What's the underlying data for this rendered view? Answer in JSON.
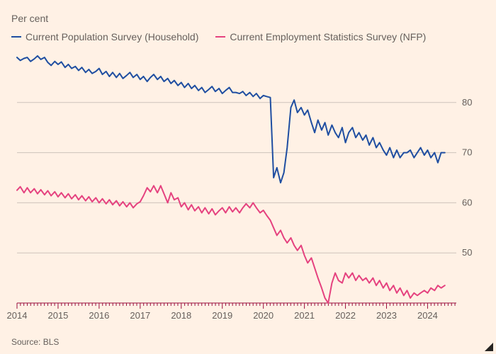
{
  "chart": {
    "type": "line",
    "ylabel": "Per cent",
    "source_label": "Source: BLS",
    "background_color": "#fff1e5",
    "ylim": [
      40,
      90
    ],
    "ytick_step": 10,
    "yticks": [
      50,
      60,
      70,
      80
    ],
    "grid_color": "#cdc3bb",
    "tick_color": "#990f3d",
    "tick_text_color": "#66605c",
    "tick_fontsize": 13,
    "legend_fontsize": 14,
    "line_width": 2,
    "xlim": [
      2014,
      2024.7
    ],
    "xticks": [
      2014,
      2015,
      2016,
      2017,
      2018,
      2019,
      2020,
      2021,
      2022,
      2023,
      2024
    ],
    "xtick_labels": [
      "2014",
      "2015",
      "2016",
      "2017",
      "2018",
      "2019",
      "2020",
      "2021",
      "2022",
      "2023",
      "2024"
    ],
    "minor_ticks_per_year": 12,
    "series": [
      {
        "id": "cps",
        "label": "Current Population Survey (Household)",
        "color": "#1f4ea1",
        "data": [
          [
            2014.0,
            89.0
          ],
          [
            2014.08,
            88.4
          ],
          [
            2014.17,
            88.8
          ],
          [
            2014.25,
            89.0
          ],
          [
            2014.33,
            88.2
          ],
          [
            2014.42,
            88.7
          ],
          [
            2014.5,
            89.3
          ],
          [
            2014.58,
            88.6
          ],
          [
            2014.67,
            89.0
          ],
          [
            2014.75,
            88.0
          ],
          [
            2014.83,
            87.4
          ],
          [
            2014.92,
            88.2
          ],
          [
            2015.0,
            87.6
          ],
          [
            2015.08,
            88.1
          ],
          [
            2015.17,
            87.0
          ],
          [
            2015.25,
            87.6
          ],
          [
            2015.33,
            86.8
          ],
          [
            2015.42,
            87.2
          ],
          [
            2015.5,
            86.4
          ],
          [
            2015.58,
            87.0
          ],
          [
            2015.67,
            86.0
          ],
          [
            2015.75,
            86.6
          ],
          [
            2015.83,
            85.8
          ],
          [
            2015.92,
            86.2
          ],
          [
            2016.0,
            86.8
          ],
          [
            2016.08,
            85.6
          ],
          [
            2016.17,
            86.2
          ],
          [
            2016.25,
            85.2
          ],
          [
            2016.33,
            86.0
          ],
          [
            2016.42,
            85.0
          ],
          [
            2016.5,
            85.8
          ],
          [
            2016.58,
            84.8
          ],
          [
            2016.67,
            85.4
          ],
          [
            2016.75,
            86.0
          ],
          [
            2016.83,
            85.0
          ],
          [
            2016.92,
            85.6
          ],
          [
            2017.0,
            84.6
          ],
          [
            2017.08,
            85.2
          ],
          [
            2017.17,
            84.2
          ],
          [
            2017.25,
            85.0
          ],
          [
            2017.33,
            85.6
          ],
          [
            2017.42,
            84.6
          ],
          [
            2017.5,
            85.2
          ],
          [
            2017.58,
            84.2
          ],
          [
            2017.67,
            84.8
          ],
          [
            2017.75,
            83.8
          ],
          [
            2017.83,
            84.4
          ],
          [
            2017.92,
            83.4
          ],
          [
            2018.0,
            84.0
          ],
          [
            2018.08,
            83.0
          ],
          [
            2018.17,
            83.8
          ],
          [
            2018.25,
            82.8
          ],
          [
            2018.33,
            83.4
          ],
          [
            2018.42,
            82.4
          ],
          [
            2018.5,
            83.0
          ],
          [
            2018.58,
            82.0
          ],
          [
            2018.67,
            82.6
          ],
          [
            2018.75,
            83.2
          ],
          [
            2018.83,
            82.2
          ],
          [
            2018.92,
            82.8
          ],
          [
            2019.0,
            81.8
          ],
          [
            2019.08,
            82.4
          ],
          [
            2019.17,
            83.0
          ],
          [
            2019.25,
            82.0
          ],
          [
            2019.33,
            82.0
          ],
          [
            2019.42,
            81.8
          ],
          [
            2019.5,
            82.2
          ],
          [
            2019.58,
            81.4
          ],
          [
            2019.67,
            82.0
          ],
          [
            2019.75,
            81.2
          ],
          [
            2019.83,
            81.8
          ],
          [
            2019.92,
            80.8
          ],
          [
            2020.0,
            81.4
          ],
          [
            2020.08,
            81.2
          ],
          [
            2020.17,
            81.0
          ],
          [
            2020.25,
            65.0
          ],
          [
            2020.33,
            67.0
          ],
          [
            2020.42,
            64.0
          ],
          [
            2020.5,
            66.0
          ],
          [
            2020.58,
            71.0
          ],
          [
            2020.67,
            79.0
          ],
          [
            2020.75,
            80.5
          ],
          [
            2020.83,
            78.0
          ],
          [
            2020.92,
            79.0
          ],
          [
            2021.0,
            77.5
          ],
          [
            2021.08,
            78.5
          ],
          [
            2021.17,
            76.0
          ],
          [
            2021.25,
            74.0
          ],
          [
            2021.33,
            76.5
          ],
          [
            2021.42,
            74.5
          ],
          [
            2021.5,
            76.0
          ],
          [
            2021.58,
            73.5
          ],
          [
            2021.67,
            75.5
          ],
          [
            2021.75,
            74.0
          ],
          [
            2021.83,
            73.0
          ],
          [
            2021.92,
            75.0
          ],
          [
            2022.0,
            72.0
          ],
          [
            2022.08,
            74.0
          ],
          [
            2022.17,
            75.0
          ],
          [
            2022.25,
            73.0
          ],
          [
            2022.33,
            74.0
          ],
          [
            2022.42,
            72.5
          ],
          [
            2022.5,
            73.5
          ],
          [
            2022.58,
            71.5
          ],
          [
            2022.67,
            73.0
          ],
          [
            2022.75,
            71.0
          ],
          [
            2022.83,
            72.0
          ],
          [
            2022.92,
            70.5
          ],
          [
            2023.0,
            69.5
          ],
          [
            2023.08,
            71.0
          ],
          [
            2023.17,
            69.0
          ],
          [
            2023.25,
            70.5
          ],
          [
            2023.33,
            69.0
          ],
          [
            2023.42,
            70.0
          ],
          [
            2023.5,
            70.0
          ],
          [
            2023.58,
            70.5
          ],
          [
            2023.67,
            69.0
          ],
          [
            2023.75,
            70.0
          ],
          [
            2023.83,
            71.0
          ],
          [
            2023.92,
            69.5
          ],
          [
            2024.0,
            70.5
          ],
          [
            2024.08,
            69.0
          ],
          [
            2024.17,
            70.0
          ],
          [
            2024.25,
            68.0
          ],
          [
            2024.33,
            70.0
          ],
          [
            2024.42,
            70.0
          ]
        ]
      },
      {
        "id": "ces",
        "label": "Current Employment Statistics Survey (NFP)",
        "color": "#e5427f",
        "data": [
          [
            2014.0,
            62.5
          ],
          [
            2014.08,
            63.2
          ],
          [
            2014.17,
            62.0
          ],
          [
            2014.25,
            63.0
          ],
          [
            2014.33,
            62.0
          ],
          [
            2014.42,
            62.8
          ],
          [
            2014.5,
            61.8
          ],
          [
            2014.58,
            62.6
          ],
          [
            2014.67,
            61.6
          ],
          [
            2014.75,
            62.4
          ],
          [
            2014.83,
            61.4
          ],
          [
            2014.92,
            62.2
          ],
          [
            2015.0,
            61.2
          ],
          [
            2015.08,
            62.0
          ],
          [
            2015.17,
            61.0
          ],
          [
            2015.25,
            61.8
          ],
          [
            2015.33,
            60.8
          ],
          [
            2015.42,
            61.6
          ],
          [
            2015.5,
            60.6
          ],
          [
            2015.58,
            61.4
          ],
          [
            2015.67,
            60.4
          ],
          [
            2015.75,
            61.2
          ],
          [
            2015.83,
            60.2
          ],
          [
            2015.92,
            61.0
          ],
          [
            2016.0,
            60.0
          ],
          [
            2016.08,
            60.8
          ],
          [
            2016.17,
            59.8
          ],
          [
            2016.25,
            60.6
          ],
          [
            2016.33,
            59.6
          ],
          [
            2016.42,
            60.4
          ],
          [
            2016.5,
            59.4
          ],
          [
            2016.58,
            60.2
          ],
          [
            2016.67,
            59.2
          ],
          [
            2016.75,
            60.0
          ],
          [
            2016.83,
            59.0
          ],
          [
            2016.92,
            59.8
          ],
          [
            2017.0,
            60.2
          ],
          [
            2017.08,
            61.4
          ],
          [
            2017.17,
            63.0
          ],
          [
            2017.25,
            62.2
          ],
          [
            2017.33,
            63.4
          ],
          [
            2017.42,
            62.0
          ],
          [
            2017.5,
            63.4
          ],
          [
            2017.58,
            61.8
          ],
          [
            2017.67,
            60.0
          ],
          [
            2017.75,
            62.0
          ],
          [
            2017.83,
            60.6
          ],
          [
            2017.92,
            61.0
          ],
          [
            2018.0,
            59.2
          ],
          [
            2018.08,
            60.0
          ],
          [
            2018.17,
            58.6
          ],
          [
            2018.25,
            59.6
          ],
          [
            2018.33,
            58.4
          ],
          [
            2018.42,
            59.2
          ],
          [
            2018.5,
            58.0
          ],
          [
            2018.58,
            59.0
          ],
          [
            2018.67,
            57.8
          ],
          [
            2018.75,
            58.8
          ],
          [
            2018.83,
            57.6
          ],
          [
            2018.92,
            58.4
          ],
          [
            2019.0,
            59.0
          ],
          [
            2019.08,
            58.0
          ],
          [
            2019.17,
            59.2
          ],
          [
            2019.25,
            58.2
          ],
          [
            2019.33,
            59.0
          ],
          [
            2019.42,
            58.0
          ],
          [
            2019.5,
            59.0
          ],
          [
            2019.58,
            59.8
          ],
          [
            2019.67,
            59.0
          ],
          [
            2019.75,
            60.0
          ],
          [
            2019.83,
            59.0
          ],
          [
            2019.92,
            58.0
          ],
          [
            2020.0,
            58.5
          ],
          [
            2020.08,
            57.5
          ],
          [
            2020.17,
            56.5
          ],
          [
            2020.25,
            55.0
          ],
          [
            2020.33,
            53.5
          ],
          [
            2020.42,
            54.5
          ],
          [
            2020.5,
            53.0
          ],
          [
            2020.58,
            52.0
          ],
          [
            2020.67,
            53.0
          ],
          [
            2020.75,
            51.5
          ],
          [
            2020.83,
            50.5
          ],
          [
            2020.92,
            51.5
          ],
          [
            2021.0,
            49.5
          ],
          [
            2021.08,
            48.0
          ],
          [
            2021.17,
            49.0
          ],
          [
            2021.25,
            47.0
          ],
          [
            2021.33,
            45.0
          ],
          [
            2021.42,
            43.0
          ],
          [
            2021.5,
            41.0
          ],
          [
            2021.58,
            40.0
          ],
          [
            2021.67,
            44.0
          ],
          [
            2021.75,
            46.0
          ],
          [
            2021.83,
            44.5
          ],
          [
            2021.92,
            44.0
          ],
          [
            2022.0,
            46.0
          ],
          [
            2022.08,
            45.0
          ],
          [
            2022.17,
            46.0
          ],
          [
            2022.25,
            44.5
          ],
          [
            2022.33,
            45.5
          ],
          [
            2022.42,
            44.5
          ],
          [
            2022.5,
            45.0
          ],
          [
            2022.58,
            44.0
          ],
          [
            2022.67,
            45.0
          ],
          [
            2022.75,
            43.5
          ],
          [
            2022.83,
            44.5
          ],
          [
            2022.92,
            43.0
          ],
          [
            2023.0,
            44.0
          ],
          [
            2023.08,
            42.5
          ],
          [
            2023.17,
            43.5
          ],
          [
            2023.25,
            42.0
          ],
          [
            2023.33,
            43.0
          ],
          [
            2023.42,
            41.5
          ],
          [
            2023.5,
            42.5
          ],
          [
            2023.58,
            41.0
          ],
          [
            2023.67,
            42.0
          ],
          [
            2023.75,
            41.5
          ],
          [
            2023.83,
            42.0
          ],
          [
            2023.92,
            42.5
          ],
          [
            2024.0,
            42.0
          ],
          [
            2024.08,
            43.0
          ],
          [
            2024.17,
            42.5
          ],
          [
            2024.25,
            43.5
          ],
          [
            2024.33,
            43.0
          ],
          [
            2024.42,
            43.5
          ]
        ]
      }
    ]
  }
}
